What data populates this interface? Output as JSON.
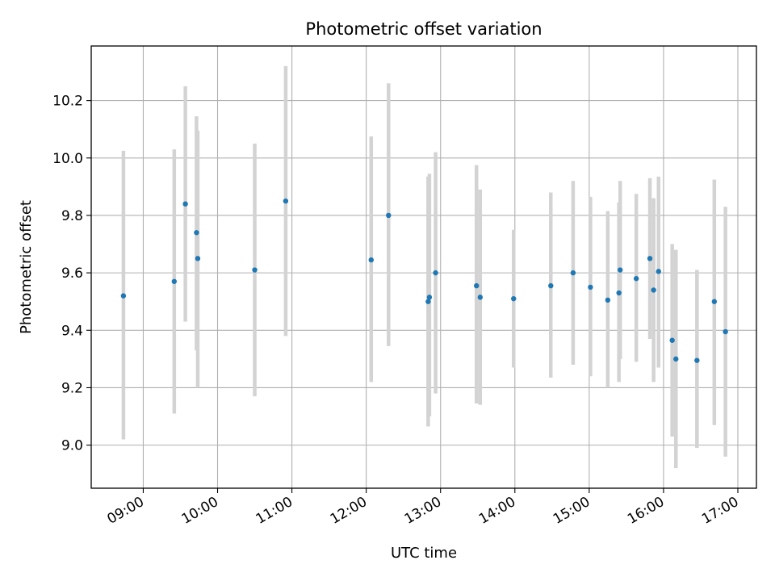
{
  "chart_data": {
    "type": "scatter",
    "title": "Photometric offset variation",
    "xlabel": "UTC time",
    "ylabel": "Photometric offset",
    "x_ticks": [
      "09:00",
      "10:00",
      "11:00",
      "12:00",
      "13:00",
      "14:00",
      "15:00",
      "16:00",
      "17:00"
    ],
    "y_ticks": [
      "9.0",
      "9.2",
      "9.4",
      "9.6",
      "9.8",
      "10.0",
      "10.2"
    ],
    "xlim": [
      "08:18",
      "17:15"
    ],
    "ylim": [
      8.85,
      10.39
    ],
    "grid": true,
    "marker_color": "#1f77b4",
    "errorbar_color": "#d3d3d3",
    "series": [
      {
        "x": [
          "08:44",
          "09:25",
          "09:34",
          "09:43",
          "09:44",
          "10:30",
          "10:55",
          "12:04",
          "12:18",
          "12:50",
          "12:51",
          "12:56",
          "13:29",
          "13:32",
          "13:59",
          "14:29",
          "14:47",
          "15:01",
          "15:15",
          "15:24",
          "15:25",
          "15:38",
          "15:49",
          "15:52",
          "15:56",
          "16:07",
          "16:10",
          "16:27",
          "16:41",
          "16:50"
        ],
        "y": [
          9.52,
          9.57,
          9.84,
          9.74,
          9.65,
          9.61,
          9.85,
          9.645,
          9.8,
          9.5,
          9.515,
          9.6,
          9.555,
          9.515,
          9.51,
          9.555,
          9.6,
          9.55,
          9.505,
          9.53,
          9.61,
          9.58,
          9.65,
          9.54,
          9.605,
          9.365,
          9.3,
          9.295,
          9.5,
          9.395
        ],
        "y_lower": [
          9.02,
          9.11,
          9.43,
          9.33,
          9.2,
          9.17,
          9.38,
          9.22,
          9.345,
          9.065,
          9.1,
          9.18,
          9.145,
          9.14,
          9.27,
          9.235,
          9.28,
          9.24,
          9.2,
          9.22,
          9.3,
          9.29,
          9.37,
          9.22,
          9.27,
          9.03,
          8.92,
          8.99,
          9.07,
          8.96
        ],
        "y_upper": [
          10.025,
          10.03,
          10.25,
          10.145,
          10.095,
          10.05,
          10.32,
          10.075,
          10.26,
          9.935,
          9.945,
          10.02,
          9.975,
          9.89,
          9.75,
          9.88,
          9.92,
          9.865,
          9.815,
          9.845,
          9.92,
          9.875,
          9.93,
          9.86,
          9.935,
          9.7,
          9.68,
          9.61,
          9.925,
          9.83
        ]
      }
    ]
  }
}
